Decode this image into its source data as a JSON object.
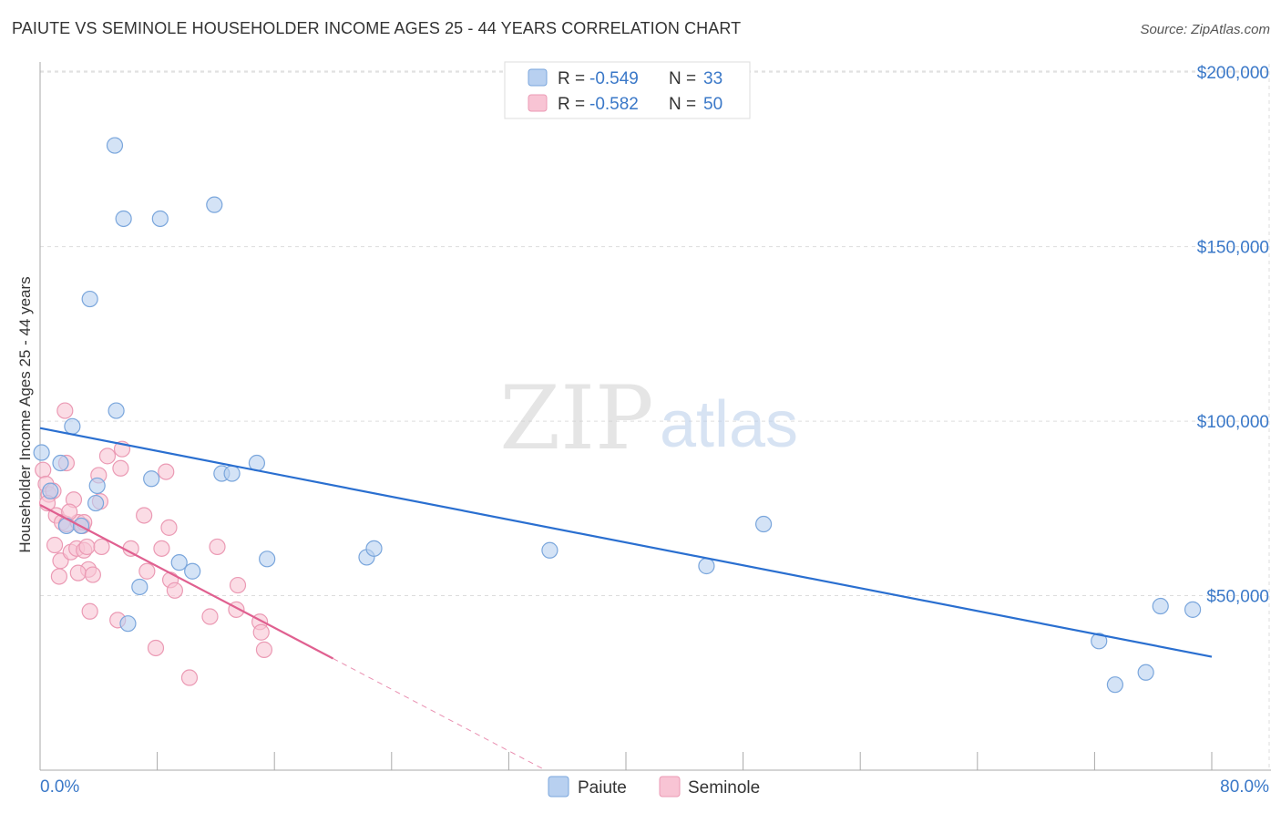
{
  "title": "PAIUTE VS SEMINOLE HOUSEHOLDER INCOME AGES 25 - 44 YEARS CORRELATION CHART",
  "source": "Source: ZipAtlas.com",
  "watermark": {
    "zip": "ZIP",
    "atlas": "atlas"
  },
  "legend_top": {
    "r_label": "R =",
    "n_label": "N =",
    "rows": [
      {
        "series": "Paiute",
        "r": "-0.549",
        "n": "33"
      },
      {
        "series": "Seminole",
        "r": "-0.582",
        "n": "50"
      }
    ]
  },
  "colors": {
    "paiute_fill": "#b8d0f0",
    "paiute_stroke": "#7aa6dc",
    "paiute_line": "#2a6fd0",
    "seminole_fill": "#f8c4d4",
    "seminole_stroke": "#eb9ab4",
    "seminole_line": "#e06090",
    "axis_text": "#3a78c8",
    "grid": "#dddddd"
  },
  "chart_data": {
    "type": "scatter",
    "title": "PAIUTE VS SEMINOLE HOUSEHOLDER INCOME AGES 25 - 44 YEARS CORRELATION CHART",
    "xlabel": "",
    "ylabel": "Householder Income Ages 25 - 44 years",
    "xlim": [
      0,
      80
    ],
    "ylim": [
      0,
      205000
    ],
    "x_tick_labels": [
      "0.0%",
      "80.0%"
    ],
    "y_ticks": [
      50000,
      100000,
      150000,
      200000
    ],
    "y_tick_labels": [
      "$50,000",
      "$100,000",
      "$150,000",
      "$200,000"
    ],
    "grid": true,
    "legend": [
      "Paiute",
      "Seminole"
    ],
    "series": [
      {
        "name": "Paiute",
        "points": [
          [
            5.1,
            179000
          ],
          [
            5.7,
            158000
          ],
          [
            8.2,
            158000
          ],
          [
            11.9,
            162000
          ],
          [
            3.4,
            135000
          ],
          [
            5.2,
            103000
          ],
          [
            2.2,
            98500
          ],
          [
            0.1,
            91000
          ],
          [
            1.4,
            88000
          ],
          [
            0.7,
            80000
          ],
          [
            3.9,
            81500
          ],
          [
            3.8,
            76500
          ],
          [
            1.8,
            70000
          ],
          [
            2.8,
            70000
          ],
          [
            7.6,
            83500
          ],
          [
            12.4,
            85000
          ],
          [
            13.1,
            85000
          ],
          [
            14.8,
            88000
          ],
          [
            9.5,
            59500
          ],
          [
            10.4,
            57000
          ],
          [
            15.5,
            60500
          ],
          [
            6.8,
            52500
          ],
          [
            6.0,
            42000
          ],
          [
            22.3,
            61000
          ],
          [
            22.8,
            63500
          ],
          [
            34.8,
            63000
          ],
          [
            45.5,
            58500
          ],
          [
            49.4,
            70500
          ],
          [
            72.3,
            37000
          ],
          [
            73.4,
            24500
          ],
          [
            75.5,
            28000
          ],
          [
            76.5,
            47000
          ],
          [
            78.7,
            46000
          ]
        ]
      },
      {
        "name": "Seminole",
        "points": [
          [
            0.2,
            86000
          ],
          [
            0.4,
            82000
          ],
          [
            0.6,
            79000
          ],
          [
            0.9,
            80000
          ],
          [
            1.1,
            73000
          ],
          [
            1.5,
            71000
          ],
          [
            1.8,
            70500
          ],
          [
            2.3,
            77500
          ],
          [
            2.6,
            71000
          ],
          [
            1.7,
            103000
          ],
          [
            1.8,
            88000
          ],
          [
            4.1,
            77000
          ],
          [
            4.6,
            90000
          ],
          [
            5.5,
            86500
          ],
          [
            5.6,
            92000
          ],
          [
            4.0,
            84500
          ],
          [
            2.0,
            74000
          ],
          [
            2.9,
            70000
          ],
          [
            3.0,
            71000
          ],
          [
            1.0,
            64500
          ],
          [
            1.4,
            60000
          ],
          [
            2.1,
            62500
          ],
          [
            2.5,
            63500
          ],
          [
            3.0,
            63000
          ],
          [
            3.2,
            64000
          ],
          [
            3.3,
            57500
          ],
          [
            1.3,
            55500
          ],
          [
            2.6,
            56500
          ],
          [
            3.6,
            56000
          ],
          [
            4.2,
            64000
          ],
          [
            6.2,
            63500
          ],
          [
            7.1,
            73000
          ],
          [
            7.3,
            57000
          ],
          [
            8.3,
            63500
          ],
          [
            8.6,
            85500
          ],
          [
            8.8,
            69500
          ],
          [
            8.9,
            54500
          ],
          [
            9.2,
            51500
          ],
          [
            12.1,
            64000
          ],
          [
            13.5,
            53000
          ],
          [
            13.4,
            46000
          ],
          [
            11.6,
            44000
          ],
          [
            15.0,
            42500
          ],
          [
            15.1,
            39500
          ],
          [
            15.3,
            34500
          ],
          [
            3.4,
            45500
          ],
          [
            5.3,
            43000
          ],
          [
            7.9,
            35000
          ],
          [
            10.2,
            26500
          ],
          [
            0.5,
            76500
          ]
        ]
      }
    ],
    "trend_lines": [
      {
        "series": "Paiute",
        "x": [
          0,
          80
        ],
        "y": [
          98000,
          32500
        ]
      },
      {
        "series": "Seminole",
        "x": [
          0,
          20
        ],
        "y": [
          76000,
          32000
        ],
        "dashed_extension_to": [
          34.5,
          0
        ]
      }
    ]
  }
}
